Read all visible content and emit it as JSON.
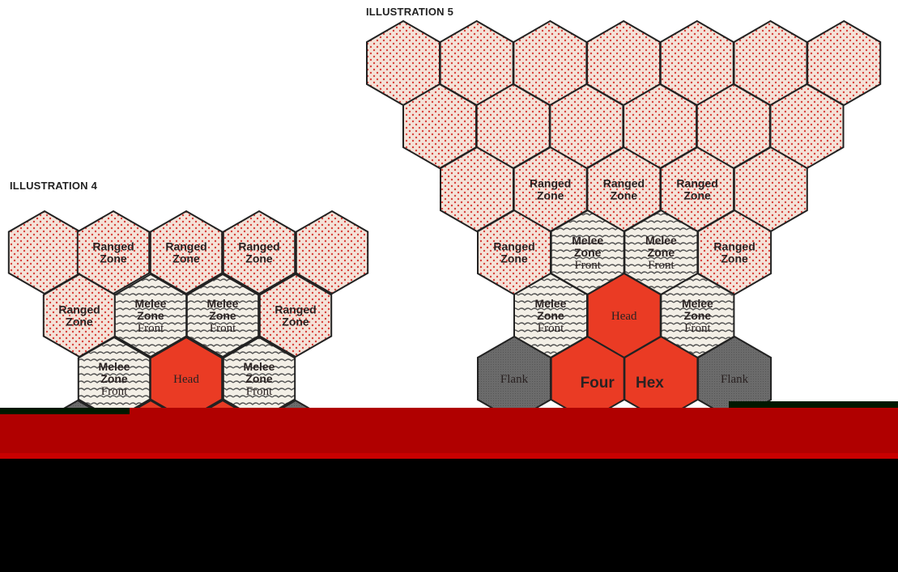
{
  "illustrations": [
    {
      "title": "ILLUSTRATION 4",
      "hexes": [
        {
          "type": "ranged",
          "lines": []
        },
        {
          "type": "ranged",
          "lines": [
            "Ranged",
            "Zone"
          ]
        },
        {
          "type": "ranged",
          "lines": [
            "Ranged",
            "Zone"
          ]
        },
        {
          "type": "ranged",
          "lines": [
            "Ranged",
            "Zone"
          ]
        },
        {
          "type": "ranged",
          "lines": []
        },
        {
          "type": "ranged",
          "lines": [
            "Ranged",
            "Zone"
          ]
        },
        {
          "type": "melee",
          "lines": [
            "Melee",
            "Zone",
            "Front"
          ]
        },
        {
          "type": "melee",
          "lines": [
            "Melee",
            "Zone",
            "Front"
          ]
        },
        {
          "type": "ranged",
          "lines": [
            "Ranged",
            "Zone"
          ]
        },
        {
          "type": "melee",
          "lines": [
            "Melee",
            "Zone",
            "Front"
          ]
        },
        {
          "type": "head",
          "lines": [
            "Head"
          ]
        },
        {
          "type": "melee",
          "lines": [
            "Melee",
            "Zone",
            "Front"
          ]
        },
        {
          "type": "flank",
          "lines": []
        },
        {
          "type": "head",
          "lines": []
        },
        {
          "type": "head",
          "lines": []
        },
        {
          "type": "flank",
          "lines": []
        }
      ]
    },
    {
      "title": "ILLUSTRATION 5",
      "hexes": [
        {
          "type": "ranged",
          "lines": []
        },
        {
          "type": "ranged",
          "lines": []
        },
        {
          "type": "ranged",
          "lines": []
        },
        {
          "type": "ranged",
          "lines": []
        },
        {
          "type": "ranged",
          "lines": []
        },
        {
          "type": "ranged",
          "lines": []
        },
        {
          "type": "ranged",
          "lines": []
        },
        {
          "type": "ranged",
          "lines": []
        },
        {
          "type": "ranged",
          "lines": []
        },
        {
          "type": "ranged",
          "lines": []
        },
        {
          "type": "ranged",
          "lines": []
        },
        {
          "type": "ranged",
          "lines": []
        },
        {
          "type": "ranged",
          "lines": []
        },
        {
          "type": "ranged",
          "lines": []
        },
        {
          "type": "ranged",
          "lines": [
            "Ranged",
            "Zone"
          ]
        },
        {
          "type": "ranged",
          "lines": [
            "Ranged",
            "Zone"
          ]
        },
        {
          "type": "ranged",
          "lines": [
            "Ranged",
            "Zone"
          ]
        },
        {
          "type": "ranged",
          "lines": []
        },
        {
          "type": "ranged",
          "lines": [
            "Ranged",
            "Zone"
          ]
        },
        {
          "type": "melee",
          "lines": [
            "Melee",
            "Zone",
            "Front"
          ]
        },
        {
          "type": "melee",
          "lines": [
            "Melee",
            "Zone",
            "Front"
          ]
        },
        {
          "type": "ranged",
          "lines": [
            "Ranged",
            "Zone"
          ]
        },
        {
          "type": "melee",
          "lines": [
            "Melee",
            "Zone",
            "Front"
          ]
        },
        {
          "type": "head",
          "lines": [
            "Head"
          ]
        },
        {
          "type": "melee",
          "lines": [
            "Melee",
            "Zone",
            "Front"
          ]
        },
        {
          "type": "flank",
          "lines": [
            "Flank"
          ]
        },
        {
          "type": "head",
          "lines": [
            "Four"
          ]
        },
        {
          "type": "head",
          "lines": [
            "Hex"
          ]
        },
        {
          "type": "flank",
          "lines": [
            "Flank"
          ]
        }
      ]
    }
  ],
  "colors": {
    "ranged_fill": "#f4e2d8",
    "ranged_dot": "#d8403a",
    "melee_fill": "#f3efe6",
    "melee_wave": "#555555",
    "head_fill": "#ea3b24",
    "flank_fill": "#6b6b6b",
    "hex_stroke": "#222222",
    "band": "#b00000"
  }
}
